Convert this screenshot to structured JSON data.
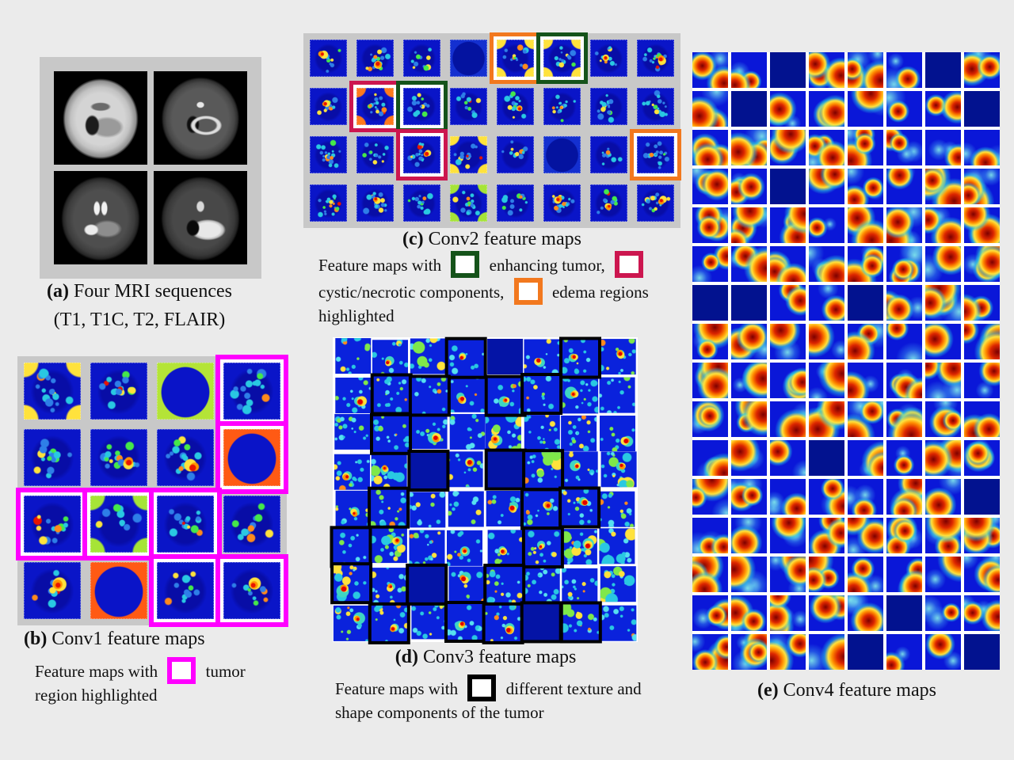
{
  "colors": {
    "magenta": "#ff00ff",
    "green": "#15531a",
    "crimson": "#cc164f",
    "orange": "#f2781e",
    "black": "#000000"
  },
  "panels": {
    "a": {
      "caption_label": "(a)",
      "caption_title": "Four MRI sequences",
      "caption_subtitle": "(T1, T1C, T2, FLAIR)",
      "rows": 2,
      "cols": 2,
      "sequences": [
        "T1",
        "T1C",
        "T2",
        "FLAIR"
      ]
    },
    "b": {
      "caption_label": "(b)",
      "caption_title": "Conv1 feature maps",
      "rows": 4,
      "cols": 4,
      "legend_prefix": "Feature maps with",
      "legend_suffix": "tumor region highlighted",
      "highlight_color_name": "magenta",
      "highlights": [
        [
          0,
          3
        ],
        [
          1,
          3
        ],
        [
          2,
          0
        ],
        [
          2,
          1
        ],
        [
          2,
          2
        ],
        [
          3,
          2
        ],
        [
          3,
          3
        ]
      ]
    },
    "c": {
      "caption_label": "(c)",
      "caption_title": "Conv2 feature maps",
      "rows": 4,
      "cols": 8,
      "legend_part1": "Feature maps with",
      "legend_part2": "enhancing tumor,",
      "legend_part3": "cystic/necrotic components,",
      "legend_part4": "edema regions highlighted",
      "highlights": [
        {
          "row": 0,
          "col": 4,
          "color": "orange"
        },
        {
          "row": 0,
          "col": 5,
          "color": "green"
        },
        {
          "row": 1,
          "col": 1,
          "color": "crimson"
        },
        {
          "row": 1,
          "col": 2,
          "color": "green"
        },
        {
          "row": 2,
          "col": 2,
          "color": "crimson"
        },
        {
          "row": 2,
          "col": 7,
          "color": "orange"
        }
      ]
    },
    "d": {
      "caption_label": "(d)",
      "caption_title": "Conv3 feature maps",
      "rows": 8,
      "cols": 8,
      "legend_prefix": "Feature maps with",
      "legend_suffix": "different texture and shape components of the tumor",
      "highlight_color_name": "black",
      "highlights": [
        [
          0,
          3
        ],
        [
          0,
          6
        ],
        [
          1,
          1
        ],
        [
          1,
          2
        ],
        [
          1,
          4
        ],
        [
          1,
          5
        ],
        [
          2,
          1
        ],
        [
          3,
          2
        ],
        [
          3,
          4
        ],
        [
          3,
          5
        ],
        [
          4,
          1
        ],
        [
          4,
          5
        ],
        [
          4,
          6
        ],
        [
          5,
          0
        ],
        [
          5,
          5
        ],
        [
          6,
          0
        ],
        [
          6,
          2
        ],
        [
          6,
          4
        ],
        [
          7,
          1
        ],
        [
          7,
          3
        ],
        [
          7,
          4
        ],
        [
          7,
          5
        ],
        [
          7,
          6
        ]
      ]
    },
    "e": {
      "caption_label": "(e)",
      "caption_title": "Conv4 feature maps",
      "rows": 16,
      "cols": 8
    }
  }
}
